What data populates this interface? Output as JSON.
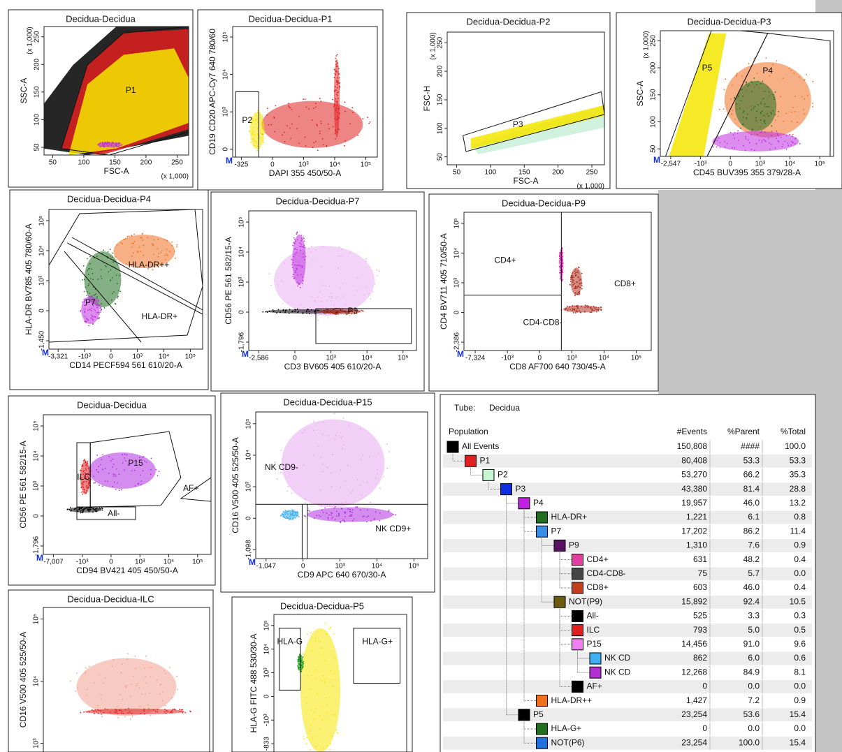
{
  "plots": [
    {
      "title": "Decidua-Decidua",
      "x_label": "FSC-A",
      "y_label": "SSC-A",
      "x_unit": "(x 1,000)",
      "y_unit": "(x 1,000)",
      "xticks": [
        "50",
        "100",
        "150",
        "200",
        "250"
      ],
      "yticks": [
        "50",
        "100",
        "150",
        "200",
        "250"
      ],
      "gates": [
        "P1"
      ]
    },
    {
      "title": "Decidua-Decidua-P1",
      "x_label": "DAPI 355 450/50-A",
      "y_label": "CD19 CD20 APC-Cy7 640 780/60",
      "marker": "M",
      "xticks": [
        "-325",
        "0",
        "10³",
        "10⁴",
        "10⁵"
      ],
      "yticks": [
        "0",
        "10³",
        "10⁴",
        "10⁵"
      ],
      "gates": [
        "P2"
      ]
    },
    {
      "title": "Decidua-Decidua-P2",
      "x_label": "FSC-A",
      "y_label": "FSC-H",
      "x_unit": "(x 1,000)",
      "y_unit": "(x 1,000)",
      "xticks": [
        "50",
        "100",
        "150",
        "200",
        "250"
      ],
      "yticks": [
        "50",
        "100",
        "150",
        "200",
        "250"
      ],
      "gates": [
        "P3"
      ]
    },
    {
      "title": "Decidua-Decidua-P3",
      "x_label": "CD45 BUV395 355 379/28-A",
      "y_label": "SSC-A",
      "y_unit": "(x 1,000)",
      "marker": "M",
      "xticks": [
        "-2,547",
        "-10³",
        "0",
        "10³",
        "10⁴",
        "10⁵"
      ],
      "yticks": [
        "50",
        "100",
        "150",
        "200",
        "250"
      ],
      "gates": [
        "P5",
        "P4"
      ]
    },
    {
      "title": "Decidua-Decidua-P4",
      "x_label": "CD14 PECF594 561 610/20-A",
      "y_label": "HLA-DR BV785 405 780/60-A",
      "marker": "M",
      "xticks": [
        "-3,321",
        "-10³",
        "0",
        "10³",
        "10⁴",
        "10⁵"
      ],
      "yticks": [
        "-1,450",
        "0",
        "10³",
        "10⁴",
        "10⁵"
      ],
      "gates": [
        "HLA-DR++",
        "P7",
        "HLA-DR+"
      ]
    },
    {
      "title": "Decidua-Decidua-P7",
      "x_label": "CD3 BV605 405 610/20-A",
      "y_label": "CD56 PE 561 582/15-A",
      "marker": "M",
      "xticks": [
        "-2,586",
        "0",
        "10³",
        "10⁴",
        "10⁵"
      ],
      "yticks": [
        "-1,796",
        "0",
        "10³",
        "10⁴",
        "10⁵"
      ],
      "gates": [
        "P9"
      ]
    },
    {
      "title": "Decidua-Decidua-P9",
      "x_label": "CD8 AF700 640 730/45-A",
      "y_label": "CD4 BV711 405 710/50-A",
      "marker": "M",
      "xticks": [
        "-7,324",
        "-10³",
        "0",
        "10³",
        "10⁴",
        "10⁵"
      ],
      "yticks": [
        "-2,386",
        "0",
        "10³",
        "10⁴",
        "10⁵"
      ],
      "gates": [
        "CD4+",
        "CD8+",
        "CD4-CD8-"
      ]
    },
    {
      "title": "Decidua-Decidua",
      "x_label": "CD94 BV421 405 450/50-A",
      "y_label": "CD56 PE 561 582/15-A",
      "marker": "M",
      "xticks": [
        "-7,007",
        "-10³",
        "0",
        "10³",
        "10⁴",
        "10⁵"
      ],
      "yticks": [
        "-1,796",
        "0",
        "10³",
        "10⁴",
        "10⁵"
      ],
      "gates": [
        "ILC",
        "P15",
        "AF+",
        "All-"
      ]
    },
    {
      "title": "Decidua-Decidua-P15",
      "x_label": "CD9 APC 640 670/30-A",
      "y_label": "CD16 V500 405 525/50-A",
      "marker": "M",
      "xticks": [
        "-1,047",
        "0",
        "10³",
        "10⁴",
        "10⁵"
      ],
      "yticks": [
        "-1,098",
        "0",
        "10³",
        "10⁴",
        "10⁵"
      ],
      "gates": [
        "NK CD9-",
        "NK CD9+"
      ]
    },
    {
      "title": "Decidua-Decidua-ILC",
      "y_label": "CD16 V500 405 525/50-A",
      "yticks": [
        "10³",
        "10⁴",
        "10⁵"
      ],
      "gates": []
    },
    {
      "title": "Decidua-Decidua-P5",
      "y_label": "HLA-G FITC 488 530/30-A",
      "yticks": [
        "-833",
        "-10³",
        "0",
        "10³",
        "10⁴",
        "10⁵"
      ],
      "gates": [
        "HLA-G",
        "HLA-G+"
      ]
    }
  ],
  "table": {
    "tube_label": "Tube:",
    "tube": "Decidua",
    "columns": [
      "Population",
      "#Events",
      "%Parent",
      "%Total"
    ],
    "rows": [
      {
        "name": "All Events",
        "color": "#000000",
        "events": "150,808",
        "parent": "####",
        "total": "100.0",
        "children": [
          {
            "name": "P1",
            "color": "#e02020",
            "events": "80,408",
            "parent": "53.3",
            "total": "53.3",
            "children": [
              {
                "name": "P2",
                "color": "#c8f5d4",
                "events": "53,270",
                "parent": "66.2",
                "total": "35.3",
                "children": [
                  {
                    "name": "P3",
                    "color": "#1030e0",
                    "events": "43,380",
                    "parent": "81.4",
                    "total": "28.8",
                    "children": [
                      {
                        "name": "P4",
                        "color": "#c020e0",
                        "events": "19,957",
                        "parent": "46.0",
                        "total": "13.2",
                        "children": [
                          {
                            "name": "HLA-DR+",
                            "color": "#207020",
                            "events": "1,221",
                            "parent": "6.1",
                            "total": "0.8"
                          },
                          {
                            "name": "P7",
                            "color": "#3a8ee8",
                            "events": "17,202",
                            "parent": "86.2",
                            "total": "11.4",
                            "children": [
                              {
                                "name": "P9",
                                "color": "#5a1060",
                                "events": "1,310",
                                "parent": "7.6",
                                "total": "0.9",
                                "children": [
                                  {
                                    "name": "CD4+",
                                    "color": "#e040a0",
                                    "events": "631",
                                    "parent": "48.2",
                                    "total": "0.4"
                                  },
                                  {
                                    "name": "CD4-CD8-",
                                    "color": "#444444",
                                    "events": "75",
                                    "parent": "5.7",
                                    "total": "0.0"
                                  },
                                  {
                                    "name": "CD8+",
                                    "color": "#c04020",
                                    "events": "603",
                                    "parent": "46.0",
                                    "total": "0.4"
                                  }
                                ]
                              },
                              {
                                "name": "NOT(P9)",
                                "color": "#6b5a10",
                                "events": "15,892",
                                "parent": "92.4",
                                "total": "10.5",
                                "children": [
                                  {
                                    "name": "All-",
                                    "color": "#000000",
                                    "events": "525",
                                    "parent": "3.3",
                                    "total": "0.3"
                                  },
                                  {
                                    "name": "ILC",
                                    "color": "#e02020",
                                    "events": "793",
                                    "parent": "5.0",
                                    "total": "0.5"
                                  },
                                  {
                                    "name": "P15",
                                    "color": "#f080f0",
                                    "events": "14,456",
                                    "parent": "91.0",
                                    "total": "9.6",
                                    "children": [
                                      {
                                        "name": "NK CD",
                                        "color": "#40b0f0",
                                        "events": "862",
                                        "parent": "6.0",
                                        "total": "0.6"
                                      },
                                      {
                                        "name": "NK CD",
                                        "color": "#b030d0",
                                        "events": "12,268",
                                        "parent": "84.9",
                                        "total": "8.1"
                                      }
                                    ]
                                  },
                                  {
                                    "name": "AF+",
                                    "color": "#000000",
                                    "events": "0",
                                    "parent": "0.0",
                                    "total": "0.0"
                                  }
                                ]
                              }
                            ]
                          },
                          {
                            "name": "HLA-DR++",
                            "color": "#f07020",
                            "events": "1,427",
                            "parent": "7.2",
                            "total": "0.9"
                          }
                        ]
                      },
                      {
                        "name": "P5",
                        "color": "#000000",
                        "events": "23,254",
                        "parent": "53.6",
                        "total": "15.4",
                        "children": [
                          {
                            "name": "HLA-G+",
                            "color": "#207020",
                            "events": "0",
                            "parent": "0.0",
                            "total": "0.0"
                          },
                          {
                            "name": "NOT(P6)",
                            "color": "#2070e0",
                            "events": "23,254",
                            "parent": "100.0",
                            "total": "15.4"
                          }
                        ]
                      }
                    ]
                  }
                ]
              }
            ]
          }
        ]
      }
    ]
  }
}
